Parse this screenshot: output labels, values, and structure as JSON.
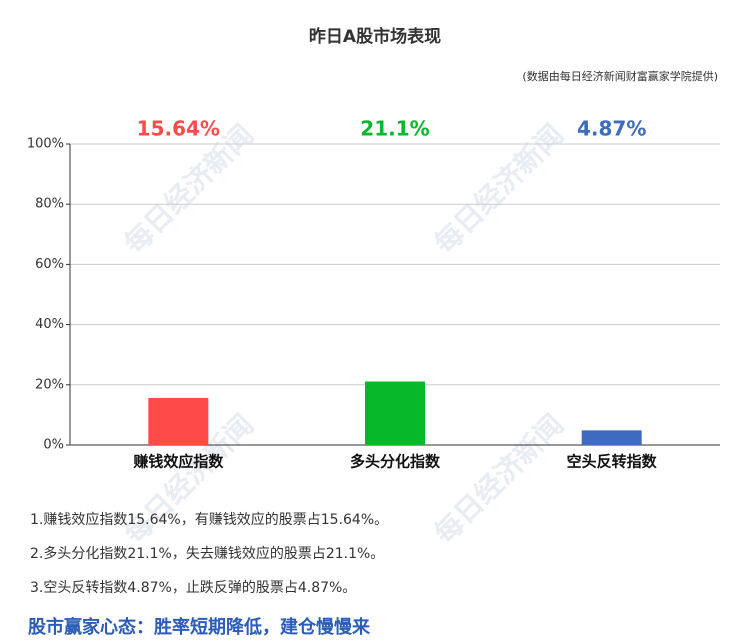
{
  "chart_data": {
    "type": "bar",
    "title": "昨日A股市场表现",
    "subtitle": "(数据由每日经济新闻财富赢家学院提供)",
    "categories": [
      "赚钱效应指数",
      "多头分化指数",
      "空头反转指数"
    ],
    "values": [
      15.64,
      21.1,
      4.87
    ],
    "value_labels": [
      "15.64%",
      "21.1%",
      "4.87%"
    ],
    "colors": [
      "#ff4a4a",
      "#06b82a",
      "#3d6bbf"
    ],
    "ylim": [
      0,
      100
    ],
    "yticks": [
      {
        "value": 0,
        "label": "0%"
      },
      {
        "value": 20,
        "label": "20%"
      },
      {
        "value": 40,
        "label": "40%"
      },
      {
        "value": 60,
        "label": "60%"
      },
      {
        "value": 80,
        "label": "80%"
      },
      {
        "value": 100,
        "label": "100%"
      }
    ],
    "grid": true
  },
  "notes": [
    "1.赚钱效应指数15.64%，有赚钱效应的股票占15.64%。",
    "2.多头分化指数21.1%，失去赚钱效应的股票占21.1%。",
    "3.空头反转指数4.87%，止跌反弹的股票占4.87%。"
  ],
  "headline": "股市赢家心态：胜率短期降低，建仓慢慢来",
  "watermark": "每日经济新闻"
}
